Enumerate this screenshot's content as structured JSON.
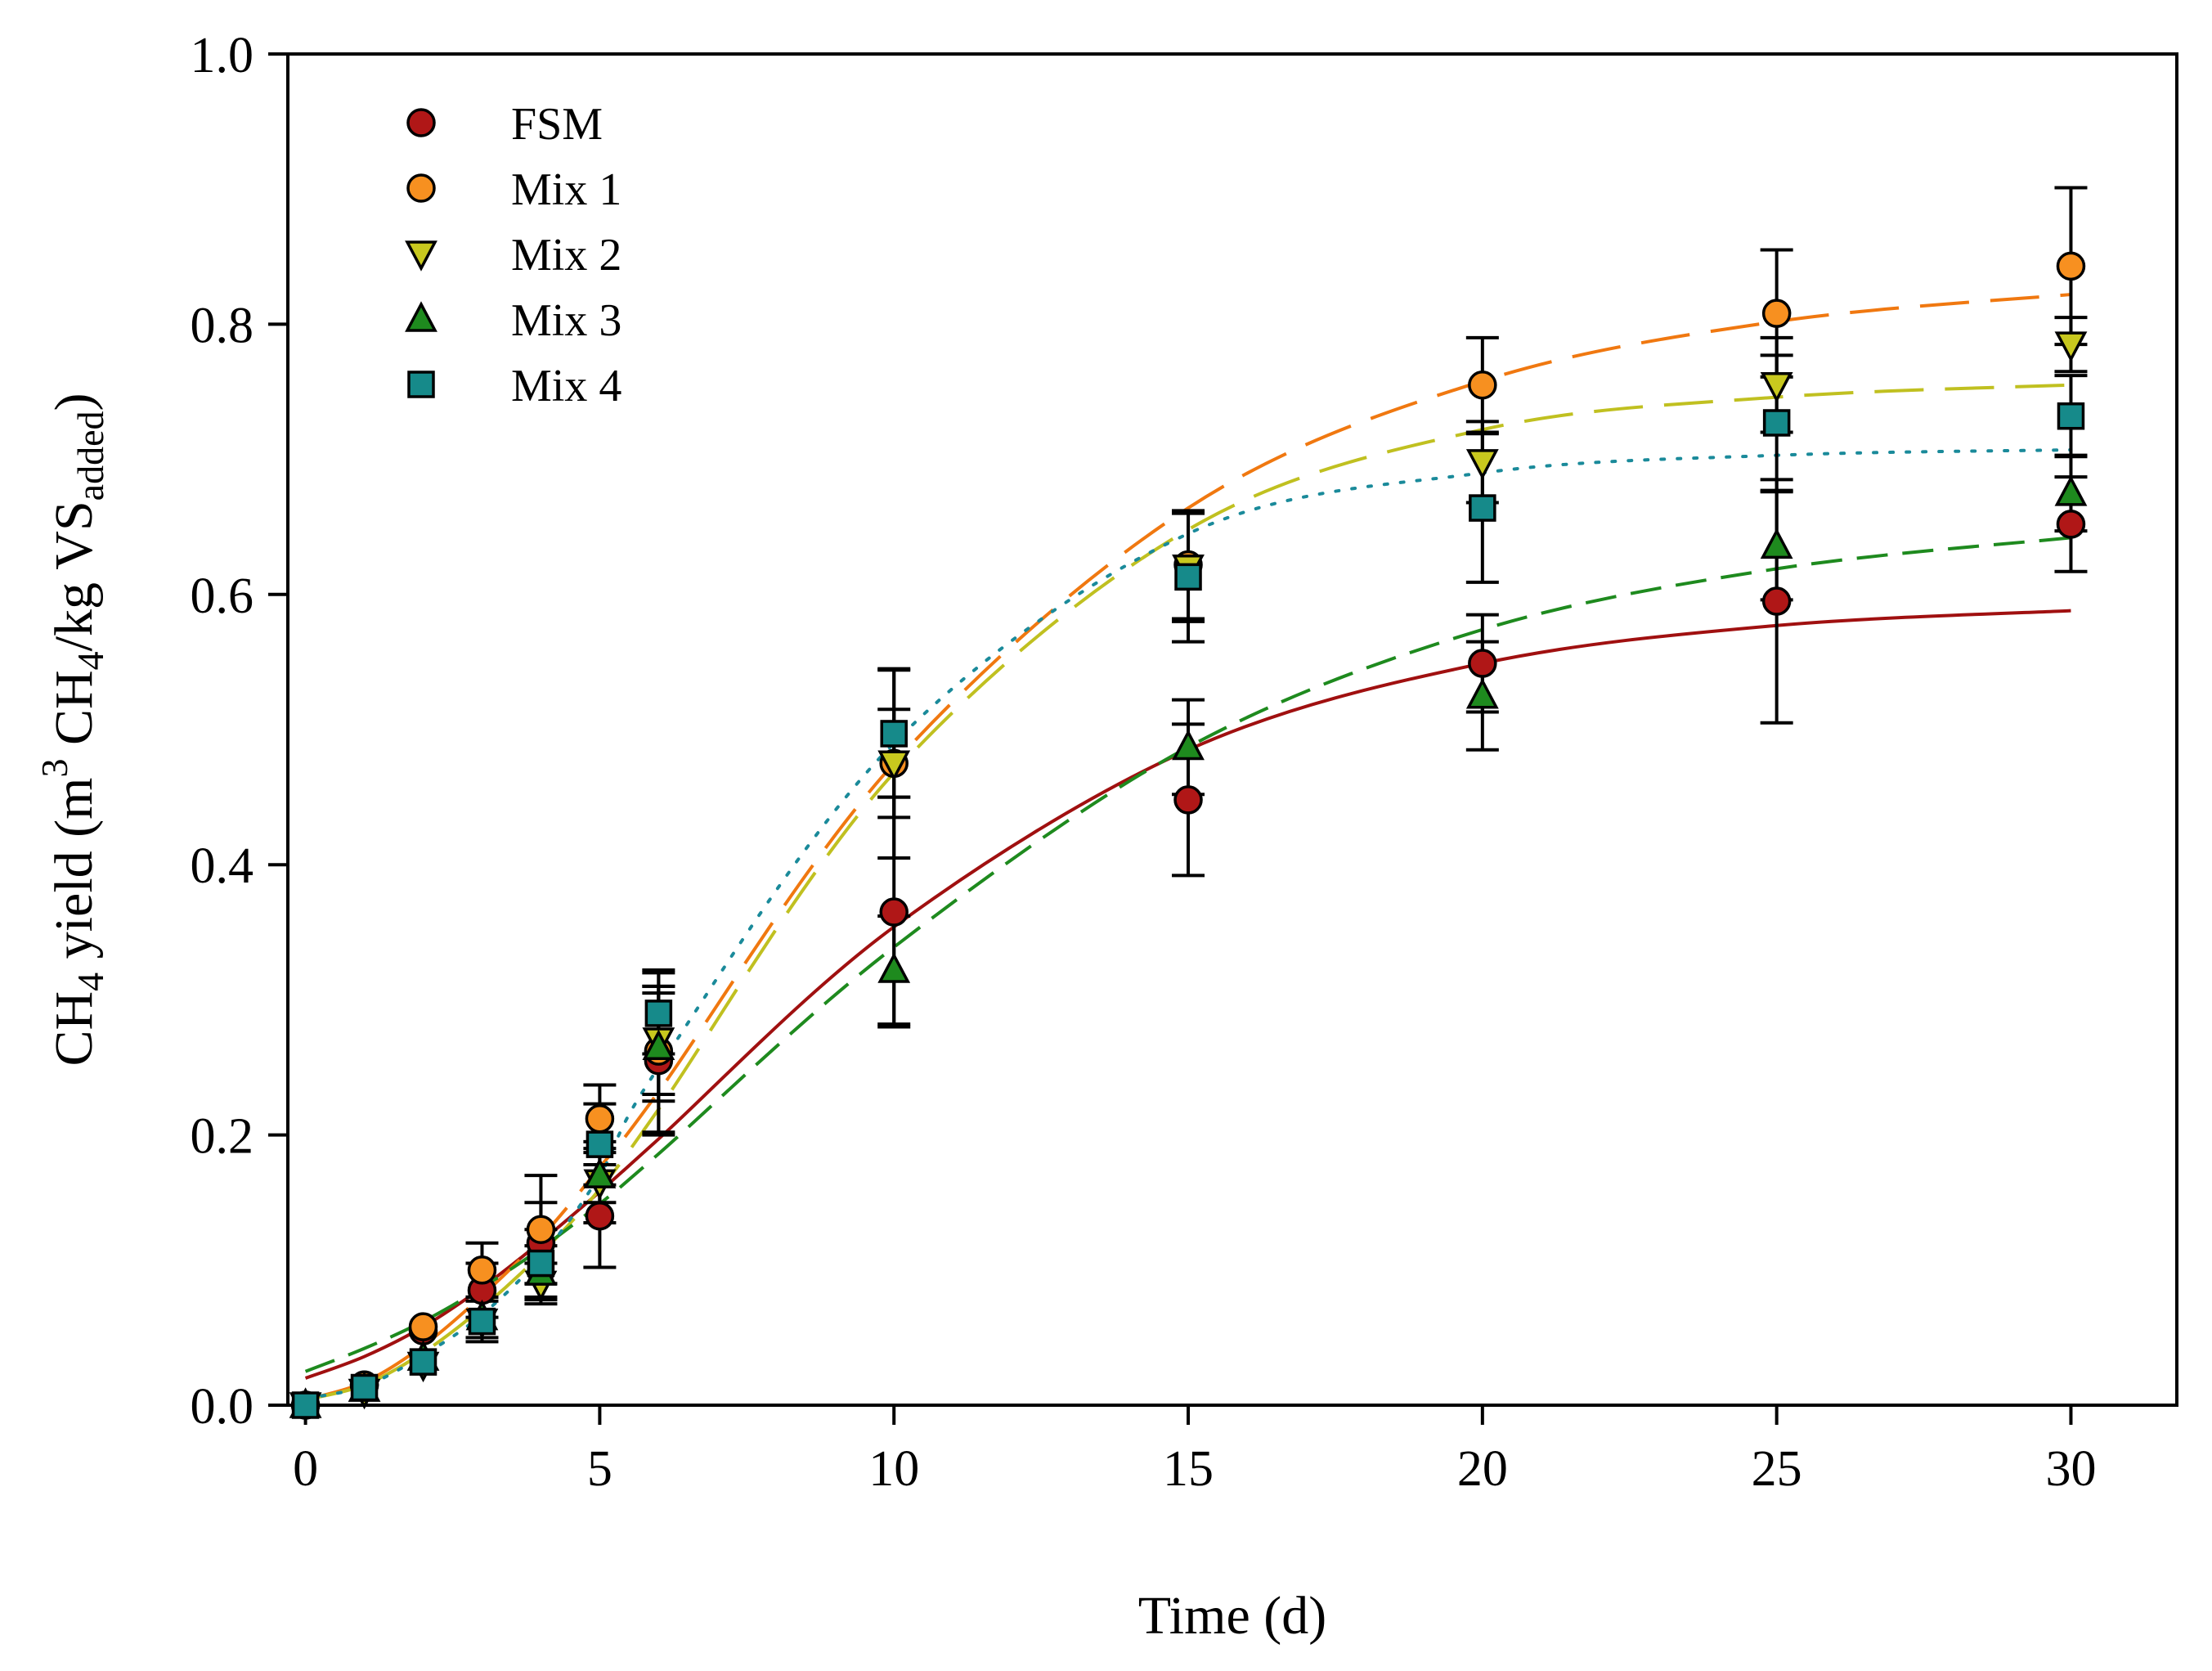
{
  "chart_data": {
    "type": "scatter",
    "title": "",
    "xlabel": "Time (d)",
    "ylabel": {
      "p1": "CH",
      "s1": "4",
      "p2": " yield (m",
      "s2": "3",
      "p3": " CH",
      "s3": "4",
      "p4": "/kg VS",
      "s4": "added",
      "p5": ")"
    },
    "xlim": [
      -0.3,
      31.8
    ],
    "ylim": [
      0,
      1.0
    ],
    "xticks": [
      0,
      5,
      10,
      15,
      20,
      25,
      30
    ],
    "xtick_labels": [
      "0",
      "5",
      "10",
      "15",
      "20",
      "25",
      "30"
    ],
    "yticks": [
      0,
      0.2,
      0.4,
      0.6,
      0.8,
      1.0
    ],
    "ytick_labels": [
      "0.0",
      "0.2",
      "0.4",
      "0.6",
      "0.8",
      "1.0"
    ],
    "legend_position": "top-left",
    "grid": false,
    "x": [
      0,
      1,
      2,
      3,
      4,
      5,
      6,
      10,
      15,
      20,
      25,
      30
    ],
    "series": [
      {
        "name": "FSM",
        "marker": "circle",
        "color": "#b01717",
        "line_color": "#a01010",
        "line_dash": "",
        "values": [
          0.0,
          0.015,
          0.055,
          0.085,
          0.12,
          0.14,
          0.255,
          0.365,
          0.448,
          0.549,
          0.595,
          0.652
        ],
        "errors": [
          0.005,
          0.005,
          0.01,
          0.02,
          0.03,
          0.038,
          0.055,
          0.085,
          0.056,
          0.036,
          0.09,
          0.035
        ],
        "fit": [
          0.02,
          0.036,
          0.058,
          0.087,
          0.121,
          0.158,
          0.197,
          0.354,
          0.485,
          0.549,
          0.577,
          0.588
        ]
      },
      {
        "name": "Mix 1",
        "marker": "circle",
        "color": "#f79020",
        "line_color": "#f07810",
        "line_dash": "60,26",
        "values": [
          0.0,
          0.015,
          0.058,
          0.1,
          0.13,
          0.212,
          0.262,
          0.475,
          0.622,
          0.755,
          0.808,
          0.843
        ],
        "errors": [
          0.005,
          0.005,
          0.01,
          0.02,
          0.04,
          0.025,
          0.06,
          0.07,
          0.04,
          0.035,
          0.047,
          0.058
        ],
        "fit": [
          0.004,
          0.017,
          0.044,
          0.081,
          0.124,
          0.176,
          0.232,
          0.475,
          0.664,
          0.758,
          0.802,
          0.822
        ]
      },
      {
        "name": "Mix 2",
        "marker": "triangle-down",
        "color": "#c8c81e",
        "line_color": "#c0c020",
        "line_dash": "60,26",
        "values": [
          0.0,
          0.01,
          0.03,
          0.062,
          0.09,
          0.165,
          0.27,
          0.475,
          0.62,
          0.698,
          0.755,
          0.785
        ],
        "errors": [
          0.005,
          0.005,
          0.01,
          0.015,
          0.015,
          0.03,
          0.04,
          0.04,
          0.04,
          0.03,
          0.035,
          0.02
        ],
        "fit": [
          0.004,
          0.015,
          0.039,
          0.072,
          0.112,
          0.16,
          0.219,
          0.468,
          0.648,
          0.722,
          0.746,
          0.755
        ]
      },
      {
        "name": "Mix 3",
        "marker": "triangle-up",
        "color": "#1e8a1e",
        "line_color": "#1e8a1e",
        "line_dash": "38,18",
        "values": [
          0.0,
          0.012,
          0.035,
          0.065,
          0.098,
          0.17,
          0.265,
          0.322,
          0.487,
          0.525,
          0.636,
          0.675
        ],
        "errors": [
          0.005,
          0.005,
          0.01,
          0.015,
          0.02,
          0.02,
          0.04,
          0.04,
          0.035,
          0.04,
          0.04,
          0.028
        ],
        "fit": [
          0.025,
          0.042,
          0.062,
          0.087,
          0.116,
          0.149,
          0.186,
          0.339,
          0.487,
          0.574,
          0.619,
          0.642
        ]
      },
      {
        "name": "Mix 4",
        "marker": "square",
        "color": "#168a8a",
        "line_color": "#1a8a9a",
        "line_dash": "4,16",
        "values": [
          0.0,
          0.013,
          0.032,
          0.062,
          0.105,
          0.193,
          0.29,
          0.497,
          0.613,
          0.664,
          0.727,
          0.732
        ],
        "errors": [
          0.005,
          0.005,
          0.01,
          0.01,
          0.025,
          0.03,
          0.03,
          0.047,
          0.048,
          0.055,
          0.05,
          0.03
        ],
        "fit": [
          0.005,
          0.014,
          0.037,
          0.067,
          0.11,
          0.17,
          0.25,
          0.49,
          0.645,
          0.69,
          0.703,
          0.707
        ]
      }
    ]
  }
}
